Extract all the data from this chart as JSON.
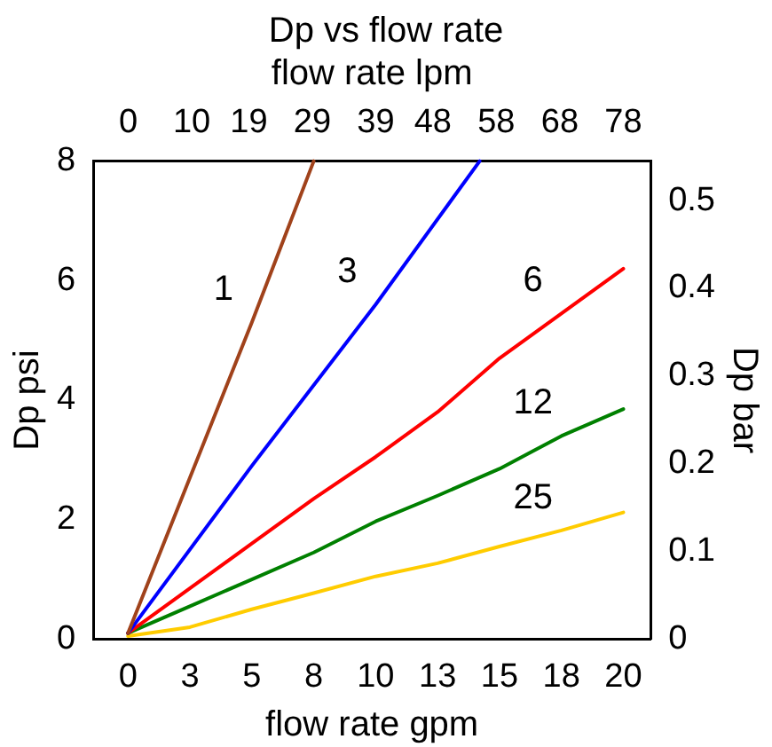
{
  "chart_data": {
    "type": "line",
    "title": "Dp vs flow rate",
    "xlabel": "flow rate gpm",
    "ylabel": "Dp psi",
    "y2label": "Dp bar",
    "x2label": "flow rate lpm",
    "x": [
      0,
      2.5,
      5,
      7.5,
      10,
      12.5,
      15,
      17.5,
      20
    ],
    "xlim": [
      -1.4,
      21.1
    ],
    "xticks": [
      0,
      {
        "value": 2.5,
        "label": "3"
      },
      5,
      {
        "value": 7.5,
        "label": "8"
      },
      10,
      {
        "value": 12.5,
        "label": "13"
      },
      15,
      {
        "value": 17.5,
        "label": "18"
      },
      20
    ],
    "x2lim": [
      -5.5,
      82.3
    ],
    "x2ticks": [
      0,
      10,
      19,
      29,
      39,
      48,
      58,
      68,
      78
    ],
    "ylim": [
      0,
      8
    ],
    "yticks": [
      0,
      2,
      4,
      6,
      8
    ],
    "y2lim": [
      0,
      0.545
    ],
    "y2ticks": [
      0,
      0.1,
      0.2,
      0.3,
      0.4,
      0.5
    ],
    "grid": false,
    "legend": false,
    "marker": "none",
    "line_style": "solid",
    "series": [
      {
        "name": "1",
        "color": "#a0421b",
        "x": [
          0,
          2.5,
          5,
          7.5
        ],
        "values": [
          0.1,
          2.7,
          5.3,
          8
        ]
      },
      {
        "name": "3",
        "color": "#0000ff",
        "x": [
          0,
          5,
          10,
          14.2
        ],
        "values": [
          0.1,
          2.9,
          5.6,
          8
        ]
      },
      {
        "name": "6",
        "color": "#ff0000",
        "values": [
          0.1,
          0.85,
          1.6,
          2.35,
          3.05,
          3.8,
          4.7,
          5.45,
          6.2
        ]
      },
      {
        "name": "12",
        "color": "#008000",
        "values": [
          0.1,
          0.55,
          1.0,
          1.45,
          1.97,
          2.4,
          2.85,
          3.4,
          3.85
        ]
      },
      {
        "name": "25",
        "color": "#ffcc00",
        "values": [
          0.05,
          0.2,
          0.5,
          0.77,
          1.05,
          1.27,
          1.55,
          1.82,
          2.12
        ]
      }
    ]
  }
}
